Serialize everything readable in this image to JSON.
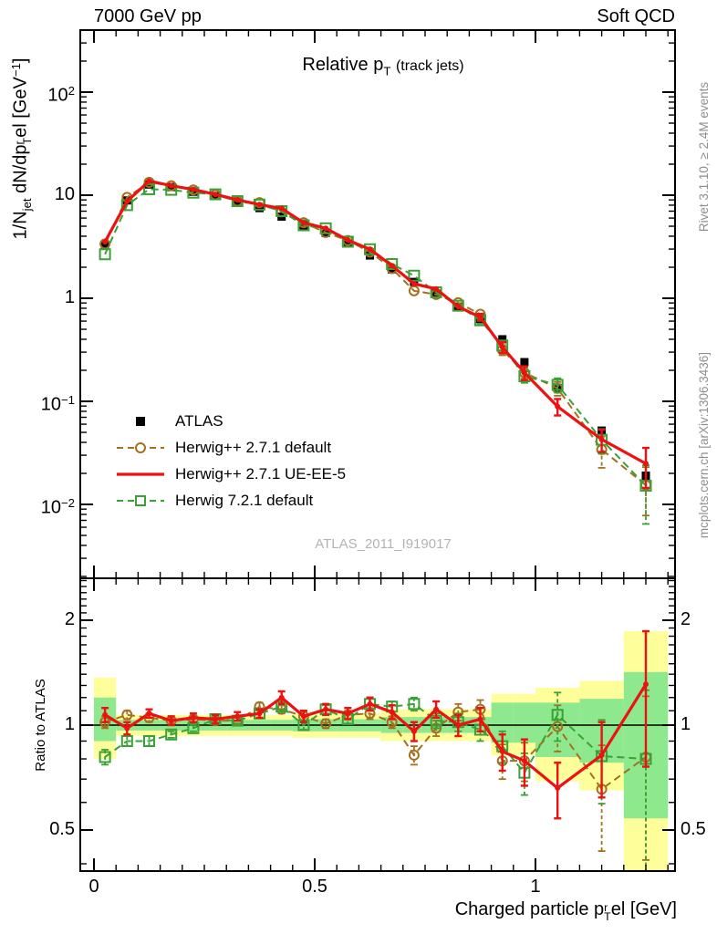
{
  "header": {
    "left": "7000 GeV pp",
    "right": "Soft QCD"
  },
  "watermark": "ATLAS_2011_I919017",
  "side_notes": {
    "top": "Rivet 3.1.10, ≥ 2.4M events",
    "bottom": "mcplots.cern.ch [arXiv:1306.3436]"
  },
  "colors": {
    "black": "#000000",
    "red": "#ee1111",
    "brown": "#a5701d",
    "green": "#39a135",
    "band_yellow": "#feff9b",
    "band_green": "#8ee88e",
    "watermark": "#b3b3b3",
    "side_note": "#8f8f8f"
  },
  "chart_data": {
    "type": "line",
    "title": "Relative pT (track jets)",
    "title_segments": [
      {
        "t": "Relative p"
      },
      {
        "t": "T",
        "m": "sub"
      },
      {
        "t": " "
      },
      {
        "t": " (track jets)",
        "m": "small"
      }
    ],
    "xlabel": "Charged particle pT^rel [GeV]",
    "xlabel_segments": [
      {
        "t": "Charged particle p"
      },
      {
        "m": "stack",
        "sup": "r",
        "sub": "T"
      },
      {
        "t": "el [GeV]"
      }
    ],
    "ylabel": "1/N_jet dN/dpT^rel [GeV^-1]",
    "ylabel_segments": [
      {
        "t": "1/N"
      },
      {
        "t": "jet",
        "m": "sub"
      },
      {
        "t": " dN/dp"
      },
      {
        "m": "stack",
        "sup": "r",
        "sub": "T"
      },
      {
        "t": "el [GeV"
      },
      {
        "t": "−1",
        "m": "sup"
      },
      {
        "t": "]"
      }
    ],
    "ratio_ylabel": "Ratio to ATLAS",
    "x_scale": "linear",
    "y_scale_main": "log",
    "y_scale_ratio": "log",
    "xlim": [
      -0.031,
      1.316
    ],
    "ylim_main": [
      0.002,
      400
    ],
    "ylim_ratio": [
      0.38,
      2.64
    ],
    "x_ticks": [
      {
        "v": 0,
        "t": "0"
      },
      {
        "v": 0.5,
        "t": "0.5"
      },
      {
        "v": 1,
        "t": "1"
      }
    ],
    "y_ticks_main": [
      {
        "v": 100,
        "segs": [
          {
            "t": "10"
          },
          {
            "t": "2",
            "m": "sup"
          }
        ]
      },
      {
        "v": 10,
        "segs": [
          {
            "t": "10"
          }
        ]
      },
      {
        "v": 1,
        "segs": [
          {
            "t": "1"
          }
        ]
      },
      {
        "v": 0.1,
        "segs": [
          {
            "t": "10"
          },
          {
            "t": "−1",
            "m": "sup"
          }
        ]
      },
      {
        "v": 0.01,
        "segs": [
          {
            "t": "10"
          },
          {
            "t": "−2",
            "m": "sup"
          }
        ]
      }
    ],
    "y_ticks_ratio": [
      {
        "v": 2,
        "t": "2"
      },
      {
        "v": 1,
        "t": "1"
      },
      {
        "v": 0.5,
        "t": "0.5"
      }
    ],
    "bin_edges": [
      0,
      0.05,
      0.1,
      0.15,
      0.2,
      0.25,
      0.3,
      0.35,
      0.4,
      0.45,
      0.5,
      0.55,
      0.6,
      0.65,
      0.7,
      0.75,
      0.8,
      0.85,
      0.9,
      0.95,
      1.0,
      1.1,
      1.2,
      1.3
    ],
    "x": [
      0.025,
      0.075,
      0.125,
      0.175,
      0.225,
      0.275,
      0.325,
      0.375,
      0.425,
      0.475,
      0.525,
      0.575,
      0.625,
      0.675,
      0.725,
      0.775,
      0.825,
      0.875,
      0.925,
      0.975,
      1.05,
      1.15,
      1.25
    ],
    "series": [
      {
        "name": "ATLAS",
        "color": "#000000",
        "marker": "square-filled",
        "line": "none",
        "values": [
          3.3,
          8.9,
          12.7,
          12.0,
          10.8,
          9.8,
          8.5,
          7.5,
          6.2,
          5.1,
          4.3,
          3.4,
          2.6,
          1.9,
          1.44,
          1.11,
          0.83,
          0.63,
          0.4,
          0.24,
          0.135,
          0.052,
          0.019
        ]
      },
      {
        "name": "Herwig++ 2.7.1 default",
        "color": "#a5701d",
        "marker": "circle-open",
        "line": "dashed",
        "ratio": [
          1.02,
          1.07,
          1.05,
          1.03,
          1.04,
          1.03,
          1.03,
          1.13,
          1.11,
          1.06,
          1.01,
          1.07,
          1.08,
          1.02,
          0.82,
          0.98,
          1.09,
          1.11,
          0.79,
          0.79,
          0.99,
          0.655,
          0.81
        ],
        "ratio_err": [
          0.04,
          0.03,
          0.03,
          0.02,
          0.02,
          0.02,
          0.02,
          0.03,
          0.03,
          0.03,
          0.03,
          0.03,
          0.04,
          0.04,
          0.05,
          0.05,
          0.06,
          0.07,
          0.09,
          0.1,
          0.15,
          0.22,
          0.4
        ]
      },
      {
        "name": "Herwig++ 2.7.1 UE-EE-5",
        "color": "#ee1111",
        "marker": "dot",
        "line": "solid",
        "ratio": [
          1.07,
          0.98,
          1.08,
          1.03,
          1.05,
          1.04,
          1.06,
          1.08,
          1.2,
          1.06,
          1.11,
          1.08,
          1.15,
          1.09,
          0.96,
          1.11,
          1.0,
          1.04,
          0.84,
          0.79,
          0.66,
          0.82,
          1.31
        ],
        "ratio_err": [
          0.05,
          0.04,
          0.03,
          0.03,
          0.03,
          0.03,
          0.03,
          0.03,
          0.05,
          0.04,
          0.04,
          0.04,
          0.05,
          0.05,
          0.06,
          0.06,
          0.07,
          0.08,
          0.1,
          0.12,
          0.12,
          0.2,
          0.55
        ]
      },
      {
        "name": "Herwig 7.2.1 default",
        "color": "#39a135",
        "marker": "square-open",
        "line": "dashed",
        "ratio": [
          0.81,
          0.9,
          0.9,
          0.94,
          0.98,
          1.04,
          1.03,
          1.08,
          1.13,
          1.0,
          1.11,
          1.04,
          1.15,
          1.13,
          1.15,
          1.03,
          1.02,
          0.97,
          0.87,
          0.73,
          1.07,
          0.815,
          0.8
        ],
        "ratio_err": [
          0.04,
          0.03,
          0.03,
          0.02,
          0.02,
          0.02,
          0.02,
          0.03,
          0.03,
          0.03,
          0.03,
          0.03,
          0.04,
          0.04,
          0.05,
          0.05,
          0.06,
          0.07,
          0.09,
          0.1,
          0.17,
          0.22,
          0.46
        ]
      }
    ],
    "mc_note": "MC main-panel values equal ATLAS values multiplied by the per-bin ratio",
    "ratio_bands": {
      "yellow_lo": [
        0.8,
        0.93,
        0.93,
        0.93,
        0.93,
        0.93,
        0.93,
        0.93,
        0.93,
        0.92,
        0.92,
        0.92,
        0.92,
        0.9,
        0.9,
        0.9,
        0.9,
        0.9,
        0.82,
        0.82,
        0.69,
        0.65,
        0.38
      ],
      "yellow_hi": [
        1.37,
        1.07,
        1.07,
        1.07,
        1.07,
        1.07,
        1.07,
        1.07,
        1.07,
        1.08,
        1.08,
        1.08,
        1.08,
        1.11,
        1.11,
        1.11,
        1.11,
        1.11,
        1.23,
        1.23,
        1.28,
        1.34,
        1.86
      ],
      "green_lo": [
        0.9,
        0.965,
        0.965,
        0.965,
        0.965,
        0.965,
        0.965,
        0.965,
        0.965,
        0.96,
        0.96,
        0.96,
        0.96,
        0.95,
        0.95,
        0.95,
        0.95,
        0.95,
        0.89,
        0.89,
        0.81,
        0.78,
        0.54
      ],
      "green_hi": [
        1.2,
        1.035,
        1.035,
        1.035,
        1.035,
        1.035,
        1.035,
        1.035,
        1.035,
        1.04,
        1.04,
        1.04,
        1.04,
        1.055,
        1.055,
        1.055,
        1.055,
        1.055,
        1.16,
        1.16,
        1.16,
        1.19,
        1.42
      ]
    },
    "legend_position": "inside-left-middle",
    "grid": false
  }
}
